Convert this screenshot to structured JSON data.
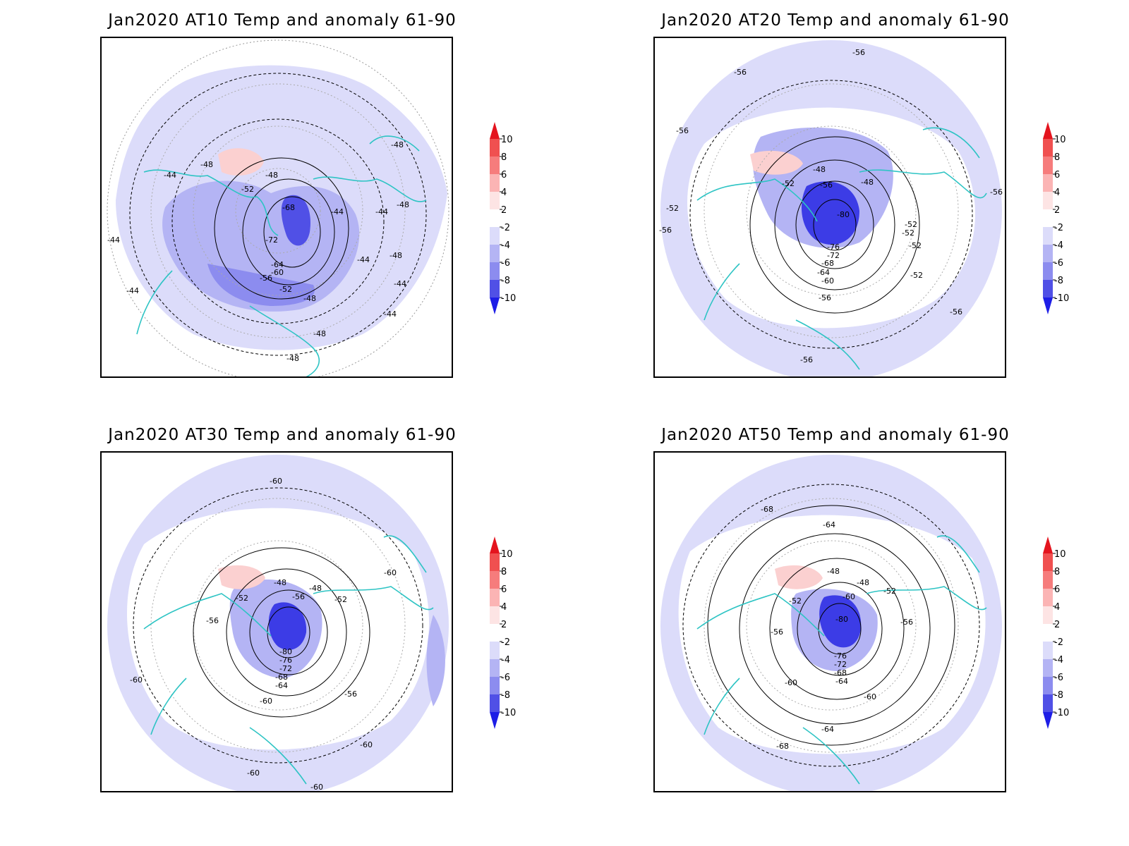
{
  "colorbar": {
    "ticks": [
      "10",
      "8",
      "6",
      "4",
      "2",
      "-2",
      "-4",
      "-6",
      "-8",
      "-10"
    ],
    "colors": [
      "#e4141e",
      "#f05050",
      "#f67c7c",
      "#fbb4b4",
      "#fde4e4",
      "#ffffff",
      "#dcdcfa",
      "#b4b4f4",
      "#8c8cef",
      "#5050e6",
      "#1e1ee6"
    ]
  },
  "panels": [
    {
      "title": "Jan2020 AT10 Temp and anomaly 61-90",
      "contour_labels": [
        "-44",
        "-48",
        "-48",
        "-44",
        "-52",
        "-68",
        "-44",
        "-44",
        "-48",
        "-44",
        "-72",
        "-48",
        "-44",
        "-64",
        "-60",
        "-56",
        "-52",
        "-48",
        "-48",
        "-44",
        "-44",
        "-48",
        "-48"
      ]
    },
    {
      "title": "Jan2020 AT20 Temp and anomaly 61-90",
      "contour_labels": [
        "-56",
        "-56",
        "-56",
        "-48",
        "-48",
        "-52",
        "-56",
        "-56",
        "-80",
        "-52",
        "-52",
        "-52",
        "-52",
        "-56",
        "-76",
        "-72",
        "-68",
        "-64",
        "-60",
        "-52",
        "-56",
        "-56",
        "-56"
      ]
    },
    {
      "title": "Jan2020 AT30 Temp and anomaly 61-90",
      "contour_labels": [
        "-60",
        "-48",
        "-48",
        "-52",
        "-52",
        "-56",
        "-56",
        "-60",
        "-80",
        "-76",
        "-72",
        "-68",
        "-64",
        "-60",
        "-56",
        "-60",
        "-60",
        "-60",
        "-60"
      ]
    },
    {
      "title": "Jan2020 AT50 Temp and anomaly 61-90",
      "contour_labels": [
        "-68",
        "-64",
        "-48",
        "-48",
        "-52",
        "-52",
        "-60",
        "-80",
        "-56",
        "-56",
        "-76",
        "-72",
        "-68",
        "-64",
        "-60",
        "-60",
        "-64",
        "-68"
      ]
    }
  ]
}
